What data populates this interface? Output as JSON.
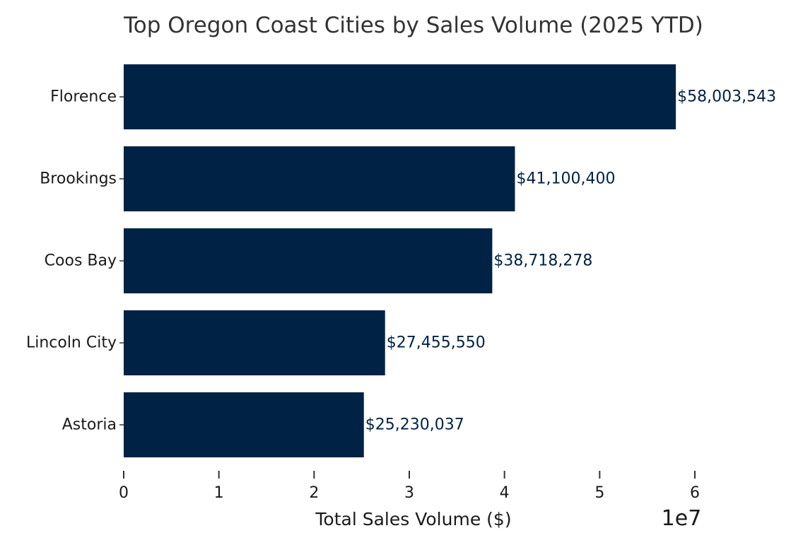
{
  "chart_data": {
    "type": "bar",
    "orientation": "horizontal",
    "title": "Top Oregon Coast Cities by Sales Volume (2025 YTD)",
    "categories": [
      "Florence",
      "Brookings",
      "Coos Bay",
      "Lincoln City",
      "Astoria"
    ],
    "values": [
      58003543,
      41100400,
      38718278,
      27455550,
      25230037
    ],
    "value_labels": [
      "$58,003,543",
      "$41,100,400",
      "$38,718,278",
      "$27,455,550",
      "$25,230,037"
    ],
    "xlabel": "Total Sales Volume ($)",
    "ylabel": "",
    "x_offset_text": "1e7",
    "x_scale": 10000000,
    "xlim": [
      0,
      6
    ],
    "x_ticks": [
      0,
      1,
      2,
      3,
      4,
      5,
      6
    ],
    "x_tick_labels": [
      "0",
      "1",
      "2",
      "3",
      "4",
      "5",
      "6"
    ],
    "grid": false,
    "legend": "none",
    "bar_color": "#002244",
    "label_color": "#002244"
  }
}
